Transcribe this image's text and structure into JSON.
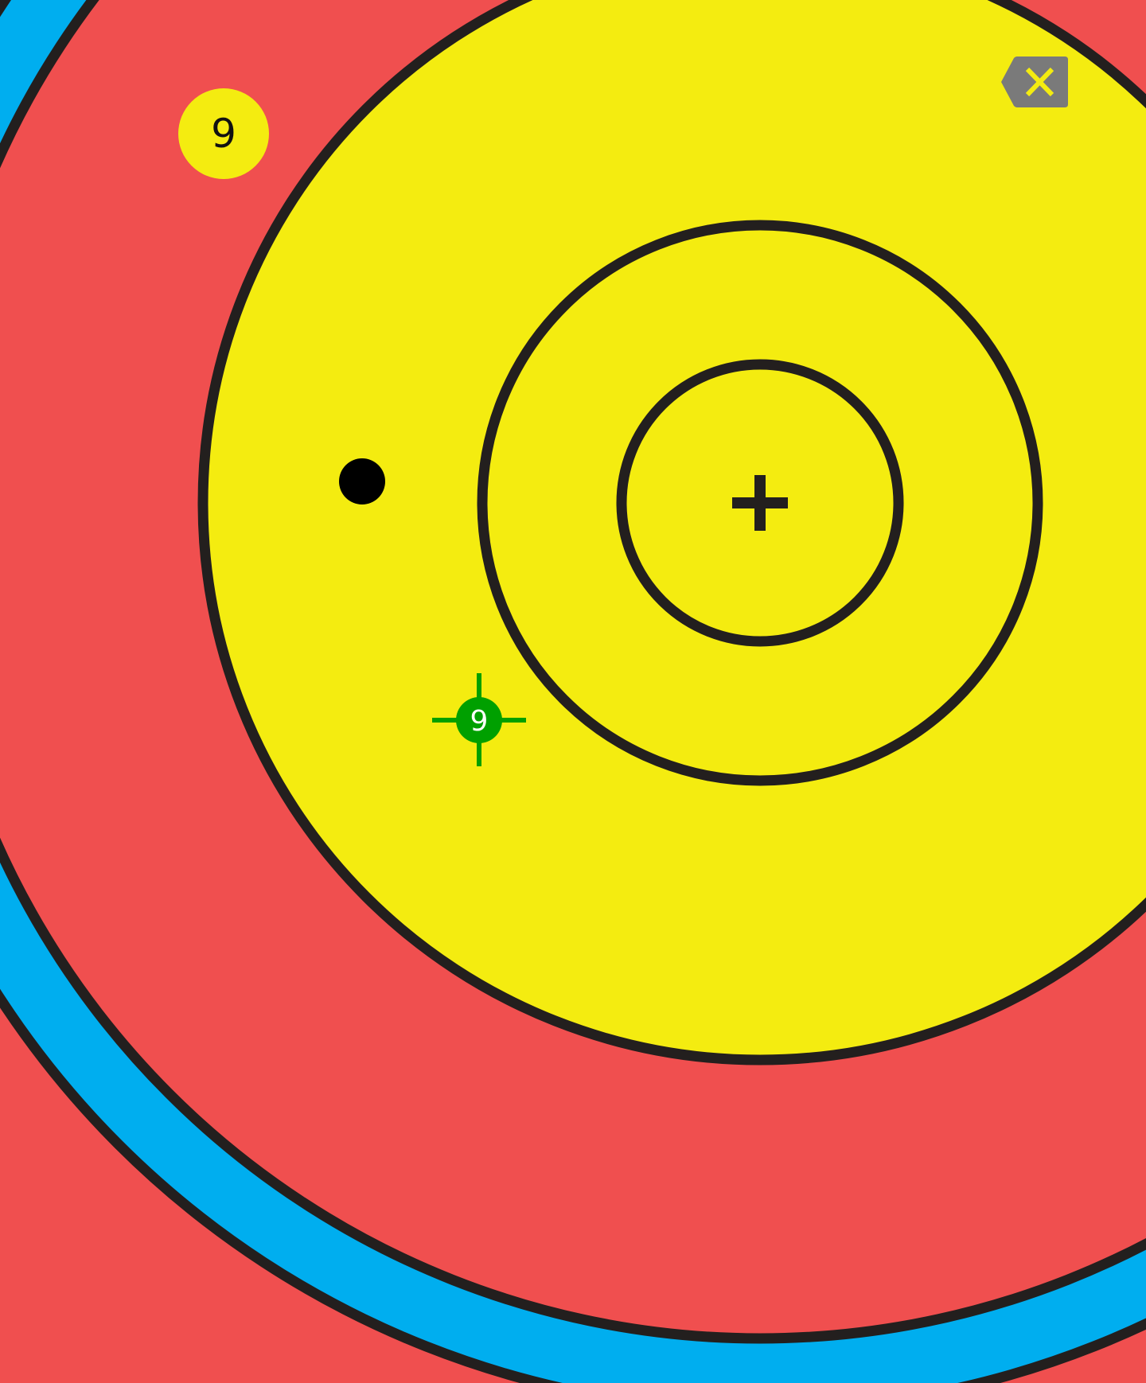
{
  "target": {
    "colors": {
      "blue": "#00aeef",
      "red": "#f04f4f",
      "gold": "#f4ec10",
      "ring_line": "#231f1e"
    },
    "center_icon": "crosshair-plus-icon"
  },
  "score_badge": {
    "value": "9",
    "color": "#f4ec10"
  },
  "arrows": [
    {
      "label": "",
      "color": "#000000",
      "icon": "arrow-hole-dot-icon",
      "state": "placed"
    },
    {
      "label": "9",
      "color": "#00a000",
      "icon": "arrow-marker-crosshair-icon",
      "state": "selected"
    }
  ],
  "toolbar": {
    "delete_icon": "backspace-icon",
    "delete_color": "#7a7a7a",
    "delete_glyph_color": "#f4ec10"
  }
}
